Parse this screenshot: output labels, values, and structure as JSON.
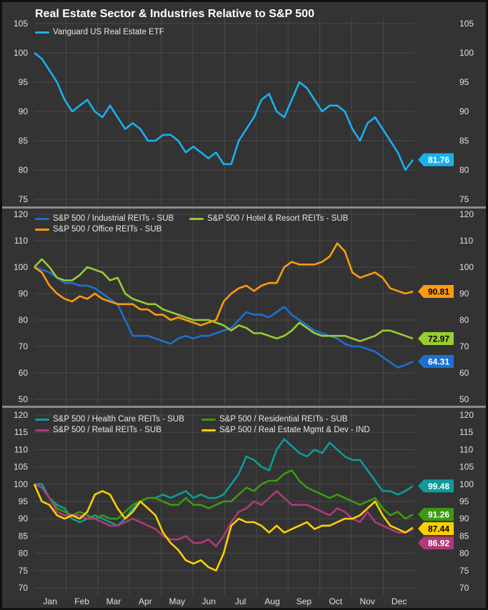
{
  "title": "Real Estate Sector & Industries Relative to S&P 500",
  "chart_data": {
    "type": "line",
    "title": "Real Estate Sector & Industries Relative to S&P 500",
    "x_labels": [
      "Jan",
      "Feb",
      "Mar",
      "Apr",
      "May",
      "Jun",
      "Jul",
      "Aug",
      "Sep",
      "Oct",
      "Nov",
      "Dec"
    ],
    "x_frequency": "weekly",
    "panels": [
      {
        "ylim": [
          75,
          105
        ],
        "yticks": [
          "75",
          "80",
          "85",
          "90",
          "95",
          "100",
          "105"
        ],
        "series": [
          {
            "name": "Vanguard US  Real Estate ETF",
            "color": "#1ab0f0",
            "last_label": "81.76",
            "tag_text": "#ffffff",
            "values": [
              100,
              99,
              97,
              95,
              92,
              90,
              91,
              92,
              90,
              89,
              91,
              89,
              87,
              88,
              87,
              85,
              85,
              86,
              86,
              85,
              83,
              84,
              83,
              82,
              83,
              81,
              81,
              85,
              87,
              89,
              92,
              93,
              90,
              89,
              92,
              95,
              94,
              92,
              90,
              91,
              91,
              90,
              87,
              85,
              88,
              89,
              87,
              85,
              83,
              80,
              81.76
            ]
          }
        ]
      },
      {
        "ylim": [
          50,
          120
        ],
        "yticks": [
          "50",
          "60",
          "70",
          "80",
          "90",
          "100",
          "110",
          "120"
        ],
        "series": [
          {
            "name": "S&P 500 / Industrial REITs - SUB",
            "color": "#1e6fd0",
            "last_label": "64.31",
            "tag_text": "#ffffff",
            "values": [
              100,
              99,
              98,
              96,
              94,
              94,
              93,
              93,
              92,
              90,
              88,
              86,
              80,
              74,
              74,
              74,
              73,
              72,
              71,
              73,
              74,
              73,
              74,
              74,
              75,
              76,
              77,
              80,
              83,
              82,
              82,
              81,
              83,
              85,
              82,
              80,
              78,
              76,
              75,
              74,
              73,
              71,
              70,
              70,
              69,
              68,
              66,
              64,
              62,
              63,
              64.31
            ]
          },
          {
            "name": "S&P 500 / Hotel & Resort REITs - SUB",
            "color": "#99cc33",
            "last_label": "72.97",
            "tag_text": "#000000",
            "values": [
              100,
              103,
              100,
              96,
              95,
              95,
              97,
              100,
              99,
              98,
              95,
              96,
              90,
              88,
              87,
              86,
              86,
              84,
              83,
              82,
              81,
              80,
              80,
              80,
              79,
              78,
              76,
              78,
              77,
              75,
              75,
              74,
              73,
              74,
              76,
              79,
              77,
              75,
              74,
              74,
              74,
              74,
              73,
              72,
              73,
              74,
              76,
              76,
              75,
              74,
              72.97
            ]
          },
          {
            "name": "S&P 500 / Office REITs - SUB",
            "color": "#ff9a10",
            "last_label": "90.81",
            "tag_text": "#000000",
            "values": [
              100,
              98,
              93,
              90,
              88,
              87,
              89,
              88,
              90,
              88,
              87,
              86,
              86,
              86,
              84,
              84,
              82,
              82,
              80,
              81,
              80,
              79,
              78,
              79,
              80,
              87,
              90,
              92,
              93,
              91,
              93,
              94,
              94,
              100,
              102,
              101,
              101,
              101,
              102,
              104,
              109,
              106,
              98,
              96,
              97,
              98,
              96,
              92,
              91,
              90,
              90.81
            ]
          }
        ]
      },
      {
        "ylim": [
          70,
          120
        ],
        "yticks": [
          "70",
          "75",
          "80",
          "85",
          "90",
          "95",
          "100",
          "105",
          "110",
          "115",
          "120"
        ],
        "series": [
          {
            "name": "S&P 500 / Health Care REITs - SUB",
            "color": "#109a9a",
            "last_label": "99.48",
            "tag_text": "#ffffff",
            "values": [
              100,
              100,
              96,
              94,
              93,
              90,
              89,
              90,
              91,
              90,
              89,
              88,
              90,
              93,
              95,
              96,
              96,
              97,
              96,
              97,
              98,
              96,
              97,
              96,
              96,
              97,
              100,
              103,
              108,
              107,
              105,
              104,
              110,
              113,
              111,
              109,
              108,
              110,
              109,
              112,
              110,
              108,
              107,
              107,
              104,
              101,
              98,
              98,
              97,
              98,
              99.48
            ]
          },
          {
            "name": "S&P 500 / Residential REITs - SUB",
            "color": "#3d9a10",
            "last_label": "91.26",
            "tag_text": "#ffffff",
            "values": [
              100,
              99,
              96,
              93,
              92,
              91,
              92,
              91,
              90,
              91,
              90,
              90,
              92,
              94,
              95,
              96,
              96,
              95,
              94,
              94,
              96,
              94,
              94,
              93,
              94,
              95,
              95,
              97,
              99,
              98,
              100,
              101,
              101,
              103,
              104,
              101,
              99,
              98,
              97,
              96,
              97,
              96,
              95,
              94,
              95,
              96,
              93,
              91,
              92,
              90,
              91.26
            ]
          },
          {
            "name": "S&P 500 / Retail REITs - SUB",
            "color": "#b03a78",
            "last_label": "86.92",
            "tag_text": "#ffffff",
            "values": [
              100,
              99,
              96,
              92,
              91,
              91,
              91,
              90,
              90,
              89,
              88,
              88,
              89,
              90,
              89,
              88,
              87,
              85,
              84,
              84,
              85,
              83,
              83,
              84,
              82,
              85,
              89,
              92,
              93,
              95,
              94,
              96,
              98,
              96,
              94,
              94,
              94,
              93,
              92,
              91,
              93,
              92,
              90,
              89,
              92,
              89,
              88,
              87,
              86,
              86,
              86.92
            ]
          },
          {
            "name": "S&P 500 / Real Estate Mgmt & Dev - IND",
            "color": "#ffd000",
            "last_label": "87.44",
            "tag_text": "#000000",
            "values": [
              100,
              95,
              94,
              91,
              90,
              91,
              90,
              92,
              97,
              98,
              97,
              93,
              90,
              92,
              95,
              93,
              91,
              86,
              83,
              81,
              78,
              77,
              78,
              76,
              75,
              80,
              88,
              90,
              89,
              89,
              88,
              86,
              88,
              86,
              87,
              88,
              89,
              87,
              88,
              88,
              89,
              90,
              90,
              91,
              93,
              95,
              91,
              88,
              87,
              86,
              87.44
            ]
          }
        ]
      }
    ]
  }
}
